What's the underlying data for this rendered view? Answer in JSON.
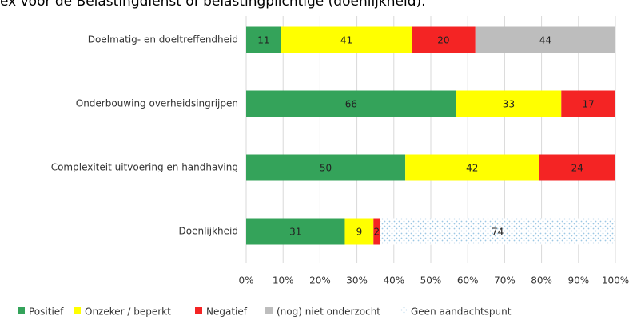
{
  "chart_data": {
    "type": "bar",
    "orientation": "horizontal",
    "stacked": "percent",
    "title": "ex voor de Belastingdienst of belastingplichtige (doenlijkheid).",
    "categories": [
      "Doelmatig- en doeltreffendheid",
      "Onderbouwing overheidsingrijpen",
      "Complexiteit uitvoering en handhaving",
      "Doenlijkheid"
    ],
    "series": [
      {
        "name": "Positief",
        "color": "#34a35a",
        "values": [
          11,
          66,
          50,
          31
        ]
      },
      {
        "name": "Onzeker / beperkt",
        "color": "#ffff00",
        "values": [
          41,
          33,
          42,
          9
        ]
      },
      {
        "name": "Negatief",
        "color": "#f42424",
        "values": [
          20,
          17,
          24,
          2
        ]
      },
      {
        "name": "(nog) niet onderzocht",
        "color": "#bdbdbd",
        "values": [
          44,
          null,
          null,
          null
        ]
      },
      {
        "name": "Geen aandachtspunt",
        "color": "#9cc7e4",
        "pattern": "dots",
        "values": [
          null,
          null,
          null,
          74
        ]
      }
    ],
    "xlim": [
      0,
      100
    ],
    "xticks": [
      {
        "value": 0,
        "label": "0%"
      },
      {
        "value": 10,
        "label": "10%"
      },
      {
        "value": 20,
        "label": "20%"
      },
      {
        "value": 30,
        "label": "30%"
      },
      {
        "value": 40,
        "label": "40%"
      },
      {
        "value": 50,
        "label": "50%"
      },
      {
        "value": 60,
        "label": "60%"
      },
      {
        "value": 70,
        "label": "70%"
      },
      {
        "value": 80,
        "label": "80%"
      },
      {
        "value": 90,
        "label": "90%"
      },
      {
        "value": 100,
        "label": "100%"
      }
    ],
    "grid": true,
    "legend": "bottom"
  }
}
